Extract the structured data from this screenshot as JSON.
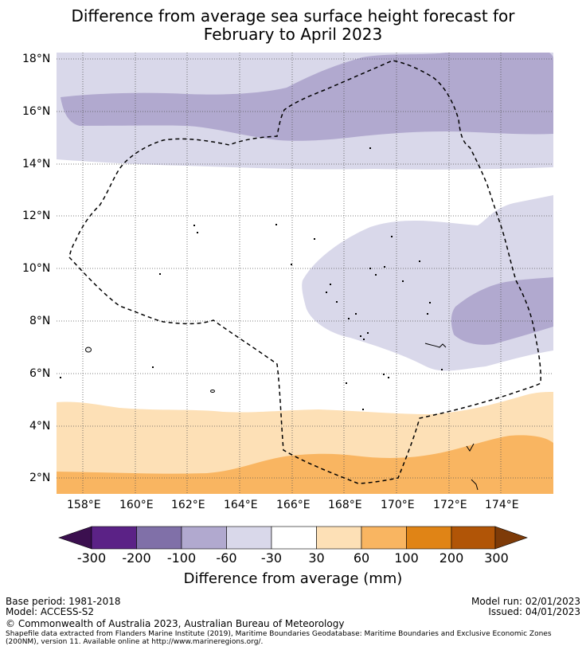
{
  "title_line1": "Difference from average sea surface height forecast for",
  "title_line2": "February to April 2023",
  "map": {
    "lat_labels": [
      "18°N",
      "16°N",
      "14°N",
      "12°N",
      "10°N",
      "8°N",
      "6°N",
      "4°N",
      "2°N"
    ],
    "lon_labels": [
      "158°E",
      "160°E",
      "162°E",
      "164°E",
      "166°E",
      "168°E",
      "170°E",
      "172°E",
      "174°E"
    ],
    "lat_range": [
      "1.5°N",
      "18.3°N"
    ],
    "lon_range": [
      "157°E",
      "176°E"
    ],
    "boundary_style": "dashed",
    "region": "Maritime boundary (EEZ) area"
  },
  "legend": {
    "title": "Difference from average (mm)",
    "ticks": [
      "-300",
      "-200",
      "-100",
      "-60",
      "-30",
      "30",
      "60",
      "100",
      "200",
      "300"
    ],
    "colors": {
      "extend_low": "#3b0f4f",
      "bins": [
        "#5b2286",
        "#8070a8",
        "#b1a9cf",
        "#d9d8ea",
        "#ffffff",
        "#fde0b6",
        "#f9b561",
        "#e08416",
        "#b15507"
      ],
      "extend_high": "#7e3b08"
    }
  },
  "footer": {
    "base_period": "Base period: 1981-2018",
    "model": "Model: ACCESS-S2",
    "model_run": "Model run: 02/01/2023",
    "issued": "Issued: 04/01/2023",
    "copyright": "© Commonwealth of Australia 2023, Australian Bureau of Meteorology",
    "source_line1": "Shapefile data extracted from Flanders Marine Institute (2019), Maritime Boundaries Geodatabase: Maritime Boundaries and Exclusive Economic Zones",
    "source_line2": "(200NM), version 11. Available online at http://www.marineregions.org/."
  }
}
